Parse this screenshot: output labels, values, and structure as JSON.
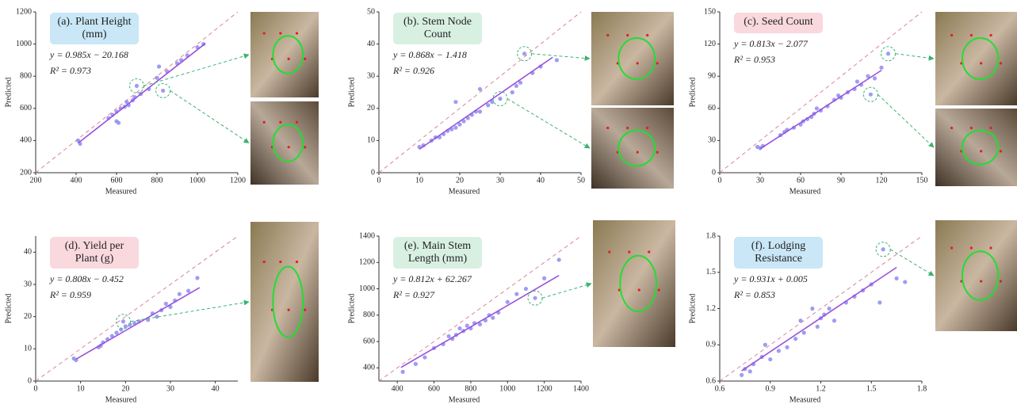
{
  "chart_data": [
    {
      "type": "scatter",
      "title_lines": [
        "(a). Plant Height",
        "(mm)"
      ],
      "title_color": "#c9e7f6",
      "equation": "y = 0.985x − 20.168",
      "r2": "R² = 0.973",
      "x_label": "Measured",
      "y_label": "Predicted",
      "color": "#8c8cf0",
      "fit_color": "#9b50dc",
      "x": [
        410,
        420,
        560,
        580,
        600,
        610,
        600,
        620,
        640,
        650,
        660,
        680,
        690,
        700,
        720,
        760,
        800,
        810,
        830,
        850,
        900,
        920,
        950,
        1000,
        1030
      ],
      "y": [
        400,
        380,
        540,
        560,
        520,
        510,
        580,
        600,
        610,
        640,
        620,
        650,
        670,
        740,
        690,
        720,
        790,
        860,
        710,
        830,
        880,
        900,
        930,
        980,
        1000
      ],
      "fit_x": [
        410,
        1040
      ],
      "fit_y": [
        384,
        1004
      ],
      "xlim": [
        200,
        1200
      ],
      "ylim": [
        200,
        1200
      ],
      "xticks": [
        200,
        400,
        600,
        800,
        1000,
        1200
      ],
      "yticks": [
        200,
        400,
        600,
        800,
        1000,
        1200
      ]
    },
    {
      "type": "scatter",
      "title_lines": [
        "(b). Stem Node",
        "Count"
      ],
      "title_color": "#d8f0e2",
      "equation": "y = 0.868x − 1.418",
      "r2": "R² = 0.926",
      "x_label": "Measured",
      "y_label": "Predicted",
      "color": "#8c8cf0",
      "fit_color": "#9b50dc",
      "x": [
        10,
        11,
        13,
        14,
        15,
        16,
        17,
        18,
        19,
        19,
        20,
        21,
        22,
        23,
        24,
        25,
        25,
        27,
        28,
        30,
        33,
        34,
        35,
        36,
        38,
        40,
        44
      ],
      "y": [
        8,
        8.5,
        10,
        11,
        11,
        12,
        13,
        13.5,
        14,
        22,
        15,
        16,
        17,
        18,
        19,
        19,
        26,
        21,
        22,
        23,
        25,
        27,
        28,
        37,
        31,
        33,
        35
      ],
      "fit_x": [
        10,
        43
      ],
      "fit_y": [
        7.3,
        35.9
      ],
      "xlim": [
        0,
        50
      ],
      "ylim": [
        0,
        50
      ],
      "xticks": [
        0,
        10,
        20,
        30,
        40,
        50
      ],
      "yticks": [
        0,
        10,
        20,
        30,
        40,
        50
      ]
    },
    {
      "type": "scatter",
      "title_lines": [
        "(c). Seed Count"
      ],
      "title_color": "#f9d8de",
      "equation": "y = 0.813x − 2.077",
      "r2": "R² = 0.953",
      "x_label": "Measured",
      "y_label": "Predicted",
      "color": "#8c8cf0",
      "fit_color": "#9b50dc",
      "x": [
        28,
        30,
        32,
        45,
        48,
        50,
        55,
        60,
        62,
        65,
        68,
        70,
        72,
        75,
        80,
        85,
        88,
        90,
        95,
        100,
        102,
        105,
        110,
        112,
        115,
        120,
        125
      ],
      "y": [
        24,
        23,
        25,
        35,
        38,
        40,
        42,
        45,
        48,
        50,
        52,
        55,
        60,
        58,
        62,
        68,
        72,
        70,
        75,
        78,
        85,
        82,
        90,
        73,
        88,
        98,
        111
      ],
      "fit_x": [
        30,
        120
      ],
      "fit_y": [
        22.3,
        95.5
      ],
      "xlim": [
        0,
        150
      ],
      "ylim": [
        0,
        150
      ],
      "xticks": [
        0,
        30,
        60,
        90,
        120,
        150
      ],
      "yticks": [
        0,
        30,
        60,
        90,
        120,
        150
      ]
    },
    {
      "type": "scatter",
      "title_lines": [
        "(d). Yield per",
        "Plant (g)"
      ],
      "title_color": "#f9d8de",
      "equation": "y = 0.808x − 0.452",
      "r2": "R² = 0.959",
      "x_label": "Measured",
      "y_label": "Predicted",
      "color": "#8c8cf0",
      "fit_color": "#9b50dc",
      "x": [
        8.5,
        9,
        14,
        14.5,
        15,
        16,
        17,
        18,
        19,
        19.5,
        20,
        21,
        22,
        23,
        25,
        26,
        27,
        28,
        29,
        30,
        31,
        32,
        34,
        36
      ],
      "y": [
        7,
        6.5,
        10.5,
        11,
        12,
        13,
        14,
        15,
        16,
        18.5,
        17,
        17.5,
        18,
        18.5,
        19,
        21,
        20,
        22,
        24,
        23,
        25,
        27,
        28,
        32
      ],
      "fit_x": [
        9,
        36.5
      ],
      "fit_y": [
        6.8,
        29.0
      ],
      "xlim": [
        0,
        45
      ],
      "ylim": [
        0,
        45
      ],
      "xticks": [
        0,
        10,
        20,
        30,
        40
      ],
      "yticks": [
        0,
        10,
        20,
        30,
        40
      ]
    },
    {
      "type": "scatter",
      "title_lines": [
        "(e). Main Stem",
        "Length (mm)"
      ],
      "title_color": "#d8f0e2",
      "equation": "y = 0.812x + 62.267",
      "r2": "R² = 0.927",
      "x_label": "Measured",
      "y_label": "Predicted",
      "color": "#8c8cf0",
      "fit_color": "#9b50dc",
      "x": [
        430,
        500,
        550,
        600,
        650,
        680,
        700,
        720,
        740,
        760,
        780,
        800,
        820,
        850,
        880,
        900,
        920,
        950,
        1000,
        1050,
        1100,
        1150,
        1200,
        1280
      ],
      "y": [
        370,
        430,
        480,
        550,
        580,
        640,
        620,
        650,
        700,
        680,
        720,
        700,
        740,
        730,
        760,
        800,
        780,
        820,
        900,
        960,
        1000,
        930,
        1080,
        1220
      ],
      "fit_x": [
        420,
        1280
      ],
      "fit_y": [
        403,
        1101
      ],
      "xlim": [
        300,
        1400
      ],
      "ylim": [
        300,
        1400
      ],
      "xticks": [
        400,
        600,
        800,
        1000,
        1200,
        1400
      ],
      "yticks": [
        400,
        600,
        800,
        1000,
        1200,
        1400
      ]
    },
    {
      "type": "scatter",
      "title_lines": [
        "(f). Lodging",
        "Resistance"
      ],
      "title_color": "#c9e7f6",
      "equation": "y = 0.931x + 0.005",
      "r2": "R² = 0.853",
      "x_label": "Measured",
      "y_label": "Predicted",
      "color": "#8c8cf0",
      "fit_color": "#9b50dc",
      "x": [
        0.73,
        0.75,
        0.78,
        0.8,
        0.85,
        0.87,
        0.9,
        0.95,
        1.0,
        1.05,
        1.08,
        1.1,
        1.15,
        1.18,
        1.2,
        1.22,
        1.25,
        1.28,
        1.35,
        1.4,
        1.45,
        1.5,
        1.55,
        1.57,
        1.65,
        1.7
      ],
      "y": [
        0.65,
        0.7,
        0.68,
        0.74,
        0.8,
        0.9,
        0.78,
        0.85,
        0.88,
        0.95,
        1.1,
        1.0,
        1.2,
        1.05,
        1.12,
        1.15,
        1.2,
        1.1,
        1.25,
        1.3,
        1.35,
        1.4,
        1.25,
        1.69,
        1.45,
        1.42
      ],
      "fit_x": [
        0.73,
        1.65
      ],
      "fit_y": [
        0.685,
        1.541
      ],
      "xlim": [
        0.6,
        1.8
      ],
      "ylim": [
        0.6,
        1.8
      ],
      "xticks": [
        0.6,
        0.9,
        1.2,
        1.5,
        1.8
      ],
      "yticks": [
        0.6,
        0.9,
        1.2,
        1.5,
        1.8
      ]
    }
  ]
}
